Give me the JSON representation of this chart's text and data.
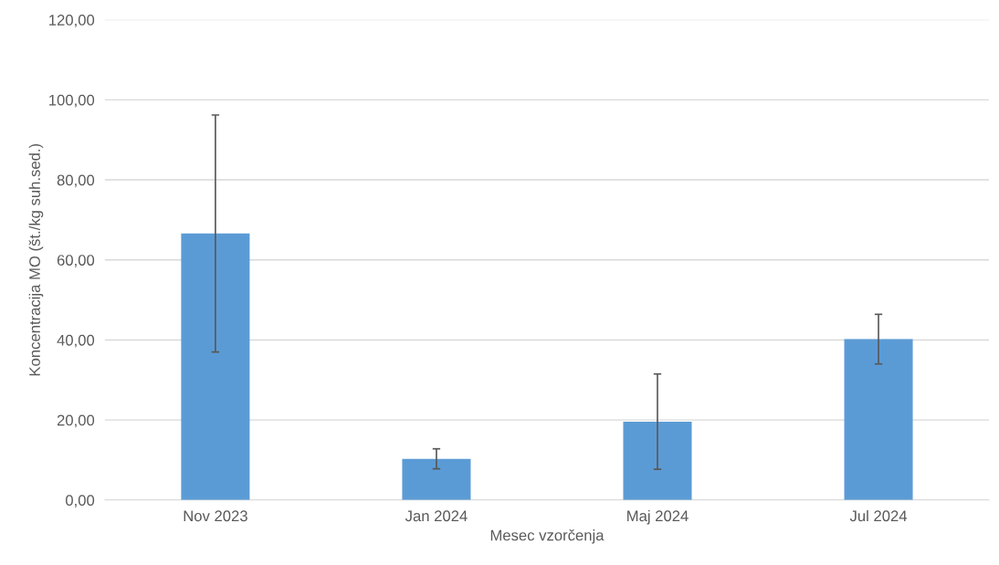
{
  "chart_data": {
    "type": "bar",
    "xlabel": "Mesec vzorčenja",
    "ylabel": "Koncentracija MO (št./kg suh.sed.)",
    "categories": [
      "Nov 2023",
      "Jan 2024",
      "Maj 2024",
      "Jul 2024"
    ],
    "values": [
      66.6,
      10.3,
      19.6,
      40.2
    ],
    "errors": [
      29.6,
      2.5,
      11.9,
      6.2
    ],
    "color": "#5b9bd5",
    "ylim": [
      0,
      120
    ],
    "yticks": [
      {
        "value": 0,
        "label": "0,00"
      },
      {
        "value": 20,
        "label": "20,00"
      },
      {
        "value": 40,
        "label": "40,00"
      },
      {
        "value": 60,
        "label": "60,00"
      },
      {
        "value": 80,
        "label": "80,00"
      },
      {
        "value": 100,
        "label": "100,00"
      },
      {
        "value": 120,
        "label": "120,00"
      }
    ],
    "grid": "y"
  }
}
